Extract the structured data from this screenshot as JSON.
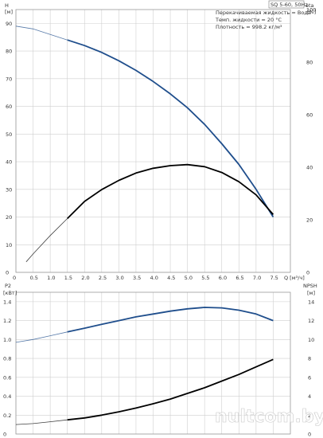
{
  "chart_data": [
    {
      "type": "line",
      "model_label": "SQ 5-60, 50Hz",
      "notes": [
        "Перекачиваемая жидкость = Вода",
        "Темп. жидкости = 20 °C",
        "Плотность = 998.2 кг/м³"
      ],
      "y_left_label": [
        "H",
        "[м]"
      ],
      "y_right_label": [
        "eta",
        "[%]"
      ],
      "x_label": "Q [м³/ч]",
      "x_ticks": [
        "0",
        "0.5",
        "1.0",
        "1.5",
        "2.0",
        "2.5",
        "3.0",
        "3.5",
        "4.0",
        "4.5",
        "5.0",
        "5.5",
        "6.0",
        "6.5",
        "7.0",
        "7.5"
      ],
      "y_left_ticks": [
        "0",
        "10",
        "20",
        "30",
        "40",
        "50",
        "60",
        "70",
        "80",
        "90"
      ],
      "y_right_ticks": [
        "0",
        "20",
        "40",
        "60",
        "80",
        "100"
      ],
      "xlim": [
        0,
        8.0
      ],
      "ylim_left": [
        0,
        95
      ],
      "ylim_right": [
        0,
        100
      ],
      "grid": true,
      "series": [
        {
          "color": "#1f4e8c",
          "axis": "left",
          "x": [
            0,
            0.5,
            1.0,
            1.5,
            2.0,
            2.5,
            3.0,
            3.5,
            4.0,
            4.5,
            5.0,
            5.5,
            6.0,
            6.5,
            7.0,
            7.5
          ],
          "values": [
            89,
            88,
            86,
            84,
            82,
            79.5,
            76.5,
            73,
            69,
            64.5,
            59.5,
            53.5,
            46.5,
            39,
            30,
            20
          ],
          "thin_until": 1.5
        },
        {
          "color": "#000000",
          "axis": "right",
          "x": [
            0.3,
            0.5,
            1.0,
            1.5,
            2.0,
            2.5,
            3.0,
            3.5,
            4.0,
            4.5,
            5.0,
            5.5,
            6.0,
            6.5,
            7.0,
            7.5
          ],
          "values": [
            4,
            7,
            14,
            20.5,
            27,
            31.5,
            35,
            37.8,
            39.6,
            40.6,
            41,
            40.2,
            38,
            34.5,
            29.5,
            22
          ],
          "thin_until": 1.5
        }
      ]
    },
    {
      "type": "line",
      "y_left_label": [
        "P2",
        "[кВт]"
      ],
      "y_right_label": [
        "NPSH",
        "[м]"
      ],
      "y_left_ticks": [
        "0",
        "0.2",
        "0.4",
        "0.6",
        "0.8",
        "1.0",
        "1.2",
        "1.4"
      ],
      "y_right_ticks": [
        "0",
        "2",
        "4",
        "6",
        "8",
        "10",
        "12",
        "14"
      ],
      "xlim": [
        0,
        8.0
      ],
      "ylim_left": [
        0,
        1.5
      ],
      "ylim_right": [
        0,
        15
      ],
      "grid": true,
      "series": [
        {
          "color": "#1f4e8c",
          "axis": "left",
          "x": [
            0,
            0.5,
            1.0,
            1.5,
            2.0,
            2.5,
            3.0,
            3.5,
            4.0,
            4.5,
            5.0,
            5.5,
            6.0,
            6.5,
            7.0,
            7.5
          ],
          "values": [
            0.97,
            1.0,
            1.04,
            1.08,
            1.12,
            1.16,
            1.2,
            1.24,
            1.27,
            1.3,
            1.325,
            1.34,
            1.335,
            1.31,
            1.27,
            1.2
          ],
          "thin_until": 1.5
        },
        {
          "color": "#000000",
          "axis": "right",
          "x": [
            0,
            0.5,
            1.0,
            1.5,
            2.0,
            2.5,
            3.0,
            3.5,
            4.0,
            4.5,
            5.0,
            5.5,
            6.0,
            6.5,
            7.0,
            7.5
          ],
          "values": [
            1.0,
            1.1,
            1.3,
            1.5,
            1.7,
            2.0,
            2.35,
            2.75,
            3.2,
            3.7,
            4.3,
            4.9,
            5.6,
            6.3,
            7.1,
            7.9
          ],
          "thin_until": 1.5
        }
      ]
    }
  ],
  "watermark": "nultcom.by"
}
